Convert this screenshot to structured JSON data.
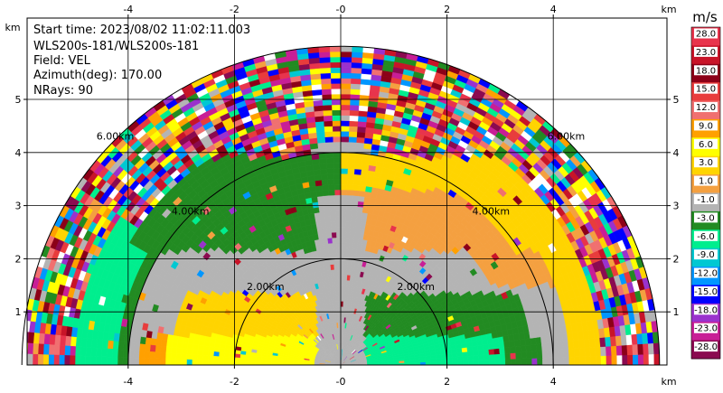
{
  "info": {
    "start_time": "Start time: 2023/08/02 11:02:11.003",
    "radar": "WLS200s-181/WLS200s-181",
    "field": "Field: VEL",
    "azimuth": "Azimuth(deg): 170.00",
    "nrays": "NRays: 90"
  },
  "chart_data": {
    "type": "heatmap",
    "subtype": "RHI radial velocity sector",
    "xlabel": "km",
    "ylabel": "km",
    "xlim": [
      -6,
      6
    ],
    "ylim": [
      0,
      5.9
    ],
    "x_ticks": [
      -4,
      -2,
      0,
      2,
      4
    ],
    "y_ticks": [
      1,
      2,
      3,
      4,
      5
    ],
    "x_tick_labels": [
      "-4",
      "-2",
      "-0",
      "2",
      "4"
    ],
    "y_tick_labels": [
      "1",
      "2",
      "3",
      "4",
      "5"
    ],
    "axis_unit_label": "km",
    "max_range_km": 6,
    "grid": true,
    "range_rings_km": [
      2,
      4,
      6
    ],
    "range_ring_labels": [
      "2.00km",
      "4.00km",
      "6.00km"
    ],
    "colorbar": {
      "unit": "m/s",
      "position": "right",
      "labels": [
        "28.0",
        "23.0",
        "18.0",
        "15.0",
        "12.0",
        "9.0",
        "6.0",
        "3.0",
        "1.0",
        "-1.0",
        "-3.0",
        "-6.0",
        "-9.0",
        "-12.0",
        "-15.0",
        "-18.0",
        "-23.0",
        "-28.0"
      ],
      "colors": [
        "#e8344c",
        "#c81428",
        "#8c0018",
        "#e83c3c",
        "#f07070",
        "#ffa000",
        "#ffff00",
        "#ffd400",
        "#f4a040",
        "#b4b4b4",
        "#228b22",
        "#00ee8e",
        "#00c8d2",
        "#0096ff",
        "#0000ff",
        "#9a32cd",
        "#c81e96",
        "#8b0a50"
      ]
    },
    "regions": [
      {
        "description": "near-left outbound",
        "value": 6.0
      },
      {
        "description": "near-right inbound",
        "value": -6.0
      },
      {
        "description": "middle-left",
        "value": -3.0
      },
      {
        "description": "middle-right",
        "value": 1.0
      },
      {
        "description": "center column",
        "value": -1.0
      },
      {
        "description": "outer",
        "value": "noise"
      }
    ]
  }
}
